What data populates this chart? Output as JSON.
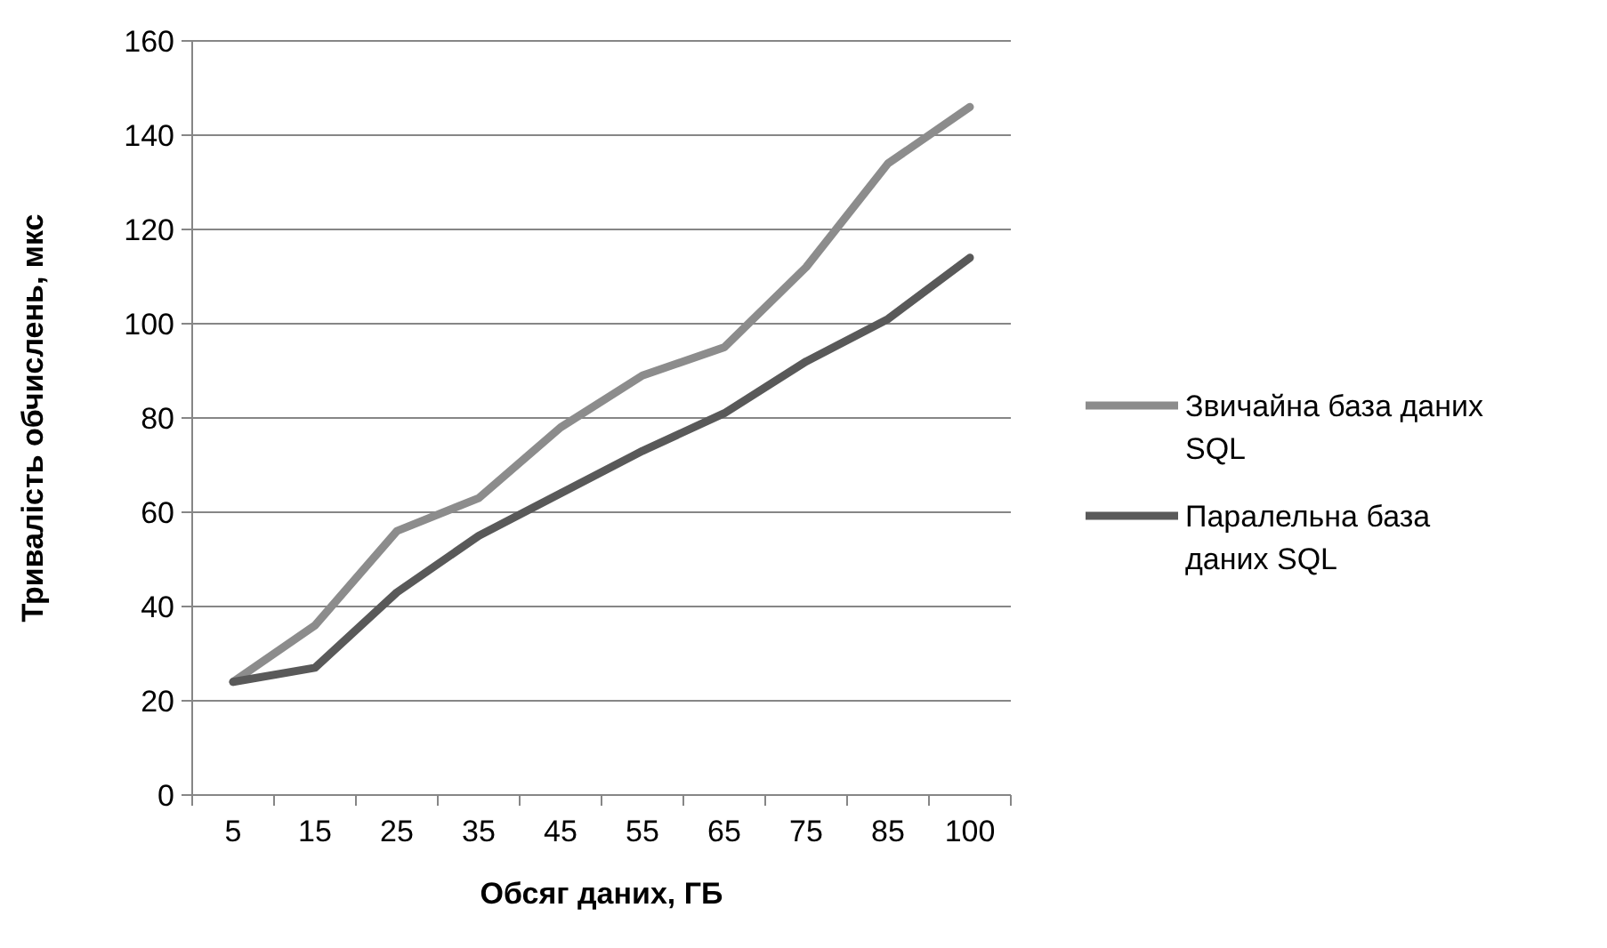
{
  "chart_data": {
    "type": "line",
    "xlabel": "Обсяг даних, ГБ",
    "ylabel": "Тривалість обчислень, мкс",
    "categories": [
      "5",
      "15",
      "25",
      "35",
      "45",
      "55",
      "65",
      "75",
      "85",
      "100"
    ],
    "series": [
      {
        "name": "Звичайна база даних SQL",
        "color": "#8c8c8c",
        "values": [
          24,
          36,
          56,
          63,
          78,
          89,
          95,
          112,
          134,
          146
        ]
      },
      {
        "name": "Паралельна база даних SQL",
        "color": "#595959",
        "values": [
          24,
          27,
          43,
          55,
          64,
          73,
          81,
          92,
          101,
          114
        ]
      }
    ],
    "ylim": [
      0,
      160
    ],
    "yticks": [
      0,
      20,
      40,
      60,
      80,
      100,
      120,
      140,
      160
    ],
    "grid": "y",
    "legend": "right",
    "marker": "none",
    "line_style": "solid"
  }
}
